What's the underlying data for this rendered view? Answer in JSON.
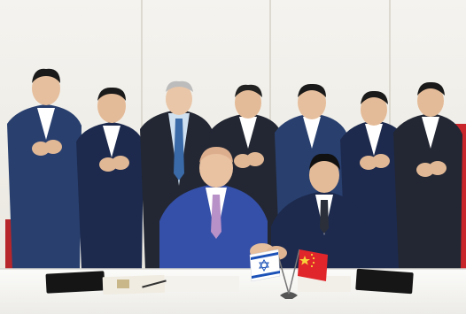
{
  "photo": {
    "subject": "signing-ceremony",
    "background_color": "#f1efe9",
    "table_color": "#f7f7f5",
    "flag_colors": {
      "israel_blue": "#1c52b8",
      "china_red": "#e0262a",
      "china_star": "#f7d23a"
    },
    "suit_colors": [
      "#1d2a4e",
      "#232733",
      "#29406f",
      "#3550a8"
    ]
  }
}
